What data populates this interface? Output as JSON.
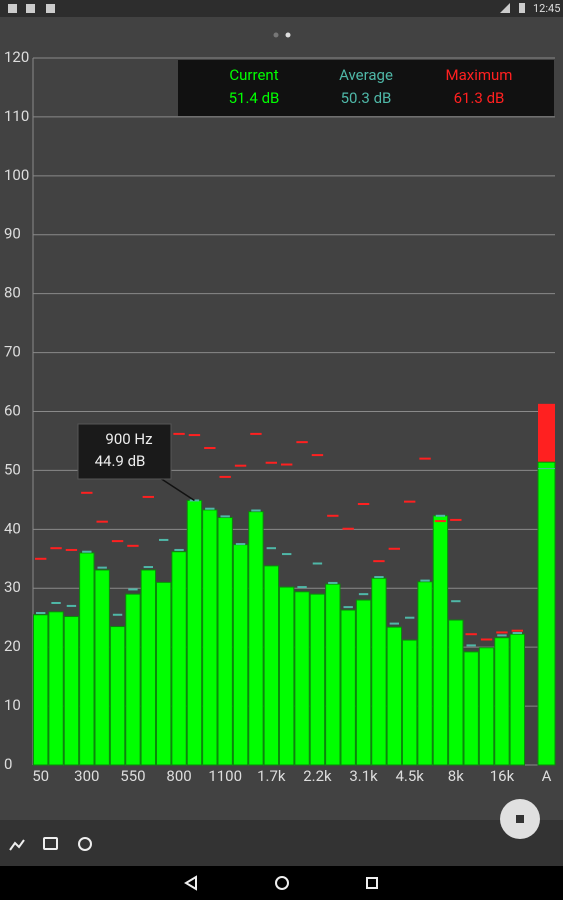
{
  "status_bar": {
    "time": "12:45"
  },
  "chart_data": {
    "type": "bar",
    "categories": [
      "50",
      null,
      null,
      "300",
      null,
      null,
      "550",
      null,
      null,
      "800",
      null,
      null,
      "1100",
      null,
      null,
      "1.7k",
      null,
      null,
      "2.2k",
      null,
      null,
      "3.1k",
      null,
      null,
      "4.5k",
      null,
      null,
      "8k",
      null,
      null,
      "16k",
      null
    ],
    "series": [
      {
        "name": "Current",
        "color": "#00ff00",
        "overall": 51.4,
        "overall_label": "51.4 dB",
        "values": [
          25.5,
          26,
          25.2,
          36,
          33.1,
          23.5,
          29,
          33.1,
          31,
          36.2,
          44.9,
          43.3,
          42,
          37.4,
          43,
          33.8,
          30.2,
          29.4,
          29,
          30.7,
          26.3,
          28,
          31.7,
          23.4,
          21.2,
          31.1,
          42.3,
          24.6,
          19.2,
          19.9,
          21.6,
          22.2
        ]
      },
      {
        "name": "Average",
        "color": "#4fb8a8",
        "overall": 50.3,
        "overall_label": "50.3 dB",
        "values": [
          25.8,
          27.5,
          27,
          36.2,
          33.5,
          25.5,
          29.8,
          33.6,
          38.2,
          36.5,
          44.9,
          43.5,
          42.2,
          37.5,
          43.2,
          36.8,
          35.8,
          30.2,
          34.2,
          30.9,
          26.8,
          29,
          31.9,
          24,
          25,
          31.3,
          42.3,
          27.8,
          20.3,
          21.3,
          22,
          22.4
        ]
      },
      {
        "name": "Maximum",
        "color": "#ff2020",
        "overall": 61.3,
        "overall_label": "61.3 dB",
        "values": [
          35,
          36.8,
          36.5,
          46.2,
          41.3,
          38,
          37.2,
          45.5,
          52.3,
          56.2,
          56,
          53.8,
          48.9,
          50.8,
          56.2,
          51.3,
          51,
          54.8,
          52.6,
          42.3,
          40.1,
          44.3,
          34.6,
          36.7,
          44.7,
          52,
          41.4,
          41.6,
          22.2,
          21.3,
          22.5,
          22.8
        ]
      }
    ],
    "overall_category": "A",
    "tooltip": {
      "label": "900 Hz",
      "value_label": "44.9 dB"
    },
    "ylim": [
      0,
      120
    ],
    "yticks": [
      0,
      10,
      20,
      30,
      40,
      50,
      60,
      70,
      80,
      90,
      100,
      110,
      120
    ],
    "grid": true
  }
}
